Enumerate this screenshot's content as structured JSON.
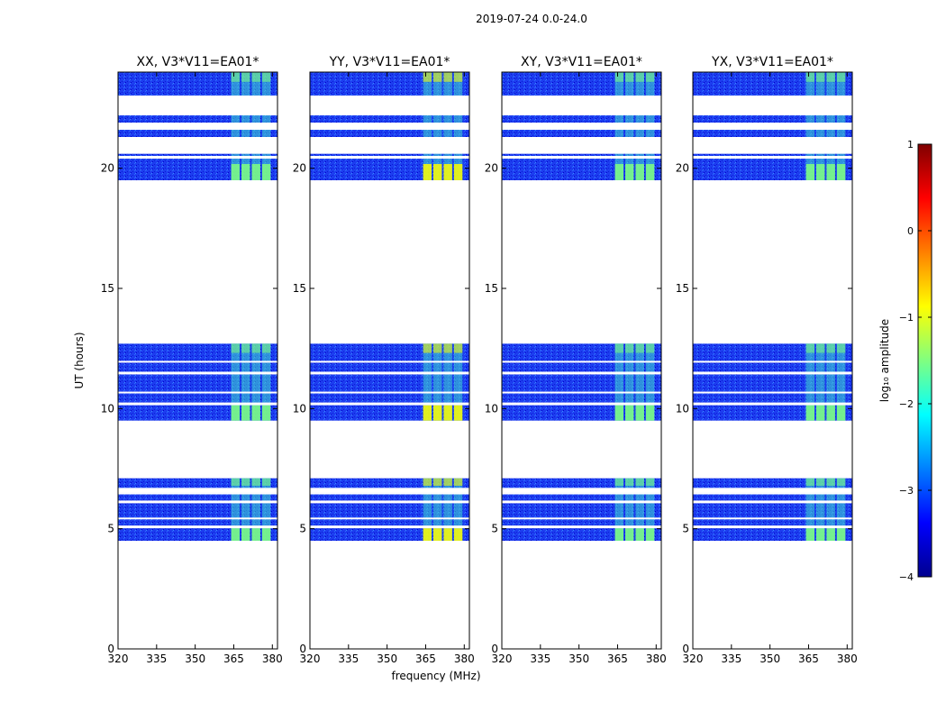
{
  "suptitle": "2019-07-24 0.0-24.0",
  "colorbar": {
    "label": "log₁₀ amplitude",
    "ticks": [
      "1",
      "0",
      "−1",
      "−2",
      "−3",
      "−4"
    ],
    "range": [
      -4,
      1
    ],
    "colormap": "jet",
    "colors": [
      "#00008f",
      "#0000ff",
      "#0080ff",
      "#00ffff",
      "#80ff80",
      "#ffff00",
      "#ff8000",
      "#ff0000",
      "#800000"
    ]
  },
  "chart_data": [
    {
      "type": "heatmap",
      "title": "XX, V3*V11=EA01*",
      "xlabel": "",
      "ylabel": "UT (hours)",
      "xlim": [
        320,
        382
      ],
      "ylim": [
        0,
        24
      ],
      "xticks": [
        "320",
        "335",
        "350",
        "365",
        "380"
      ],
      "yticks": [
        "0",
        "5",
        "10",
        "15",
        "20"
      ],
      "data_blocks_hours": [
        [
          4.5,
          7.1
        ],
        [
          9.5,
          12.7
        ],
        [
          19.5,
          24.0
        ]
      ],
      "rfi_band_MHz": [
        364,
        380
      ],
      "rfi_peak_log_amp": -1.2
    },
    {
      "type": "heatmap",
      "title": "YY, V3*V11=EA01*",
      "xlabel": "frequency (MHz)",
      "ylabel": "",
      "xlim": [
        320,
        382
      ],
      "ylim": [
        0,
        24
      ],
      "xticks": [
        "320",
        "335",
        "350",
        "365",
        "380"
      ],
      "yticks": [
        "0",
        "5",
        "10",
        "15",
        "20"
      ],
      "data_blocks_hours": [
        [
          4.5,
          7.1
        ],
        [
          9.5,
          12.7
        ],
        [
          19.5,
          24.0
        ]
      ],
      "rfi_band_MHz": [
        364,
        380
      ],
      "rfi_peak_log_amp": -1.0
    },
    {
      "type": "heatmap",
      "title": "XY, V3*V11=EA01*",
      "xlabel": "",
      "ylabel": "",
      "xlim": [
        320,
        382
      ],
      "ylim": [
        0,
        24
      ],
      "xticks": [
        "320",
        "335",
        "350",
        "365",
        "380"
      ],
      "yticks": [
        "0",
        "5",
        "10",
        "15",
        "20"
      ],
      "data_blocks_hours": [
        [
          4.5,
          7.1
        ],
        [
          9.5,
          12.7
        ],
        [
          19.5,
          24.0
        ]
      ],
      "rfi_band_MHz": [
        364,
        380
      ],
      "rfi_peak_log_amp": -1.3
    },
    {
      "type": "heatmap",
      "title": "YX, V3*V11=EA01*",
      "xlabel": "",
      "ylabel": "",
      "xlim": [
        320,
        382
      ],
      "ylim": [
        0,
        24
      ],
      "xticks": [
        "320",
        "335",
        "350",
        "365",
        "380"
      ],
      "yticks": [
        "0",
        "5",
        "10",
        "15",
        "20"
      ],
      "data_blocks_hours": [
        [
          4.5,
          7.1
        ],
        [
          9.5,
          12.7
        ],
        [
          19.5,
          24.0
        ]
      ],
      "rfi_band_MHz": [
        364,
        380
      ],
      "rfi_peak_log_amp": -1.3
    }
  ]
}
